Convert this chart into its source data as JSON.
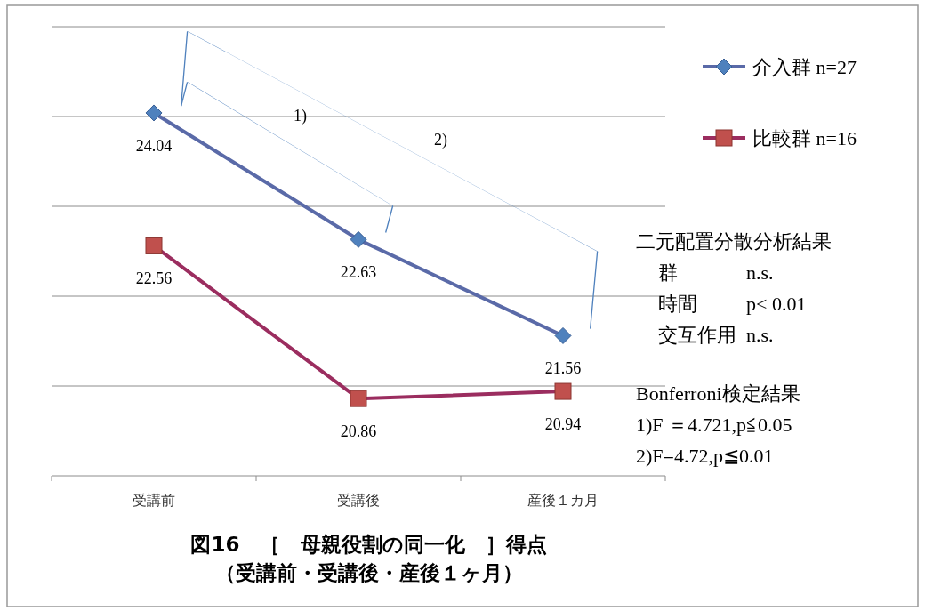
{
  "chart_data": {
    "type": "line",
    "title": "図16　［　母親役割の同一化　］得点",
    "subtitle": "（受講前・受講後・産後１ヶ月）",
    "categories": [
      "受講前",
      "受講後",
      "産後１カ月"
    ],
    "series": [
      {
        "name": "介入群  n=27",
        "color": "#5a6aa8",
        "marker": "diamond",
        "values": [
          24.04,
          22.63,
          21.56
        ]
      },
      {
        "name": "比較群  n=16",
        "color": "#9b2d5f",
        "marker": "square",
        "values": [
          22.56,
          20.86,
          20.94
        ]
      }
    ],
    "ylim": [
      20,
      25
    ],
    "yticks": [
      {
        "value": 20,
        "label": null
      },
      {
        "value": 21,
        "label": null
      },
      {
        "value": 22,
        "label": null
      },
      {
        "value": 23,
        "label": null
      },
      {
        "value": 24,
        "label": null
      },
      {
        "value": 25,
        "label": null
      }
    ],
    "tick_labels": "x",
    "grid": "y",
    "legend": "top right",
    "data_labels": true,
    "annotations": [
      "1)",
      "2)",
      "二元配置分散分析結果",
      "群　　　  n.s.",
      "時間　　  p< 0.01",
      "交互作用  n.s.",
      "Bonferroni検定結果",
      "1)F ＝4.721,p≦0.05",
      "2)F=4.72,p≦0.01"
    ]
  }
}
